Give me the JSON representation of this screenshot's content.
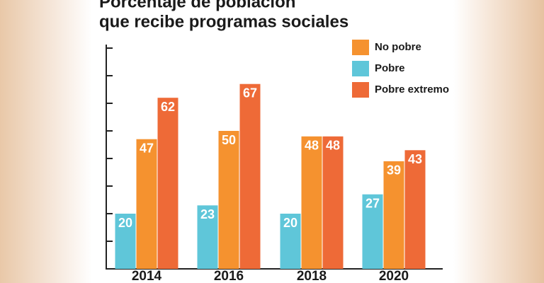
{
  "chart_data": {
    "type": "bar",
    "title": "Porcentaje de población",
    "subtitle": "que recibe programas sociales",
    "categories": [
      "2014",
      "2016",
      "2018",
      "2020"
    ],
    "series": [
      {
        "name": "No pobre",
        "color": "#f5922f",
        "values": [
          47,
          50,
          48,
          39
        ]
      },
      {
        "name": "Pobre",
        "color": "#5fc6d9",
        "values": [
          20,
          23,
          20,
          27
        ]
      },
      {
        "name": "Pobre extremo",
        "color": "#ee6a37",
        "values": [
          62,
          67,
          48,
          43
        ]
      }
    ],
    "ylim": [
      0,
      80
    ],
    "yticks": [
      0,
      10,
      20,
      30,
      40,
      50,
      60,
      70,
      80
    ],
    "legend": "top-right"
  }
}
